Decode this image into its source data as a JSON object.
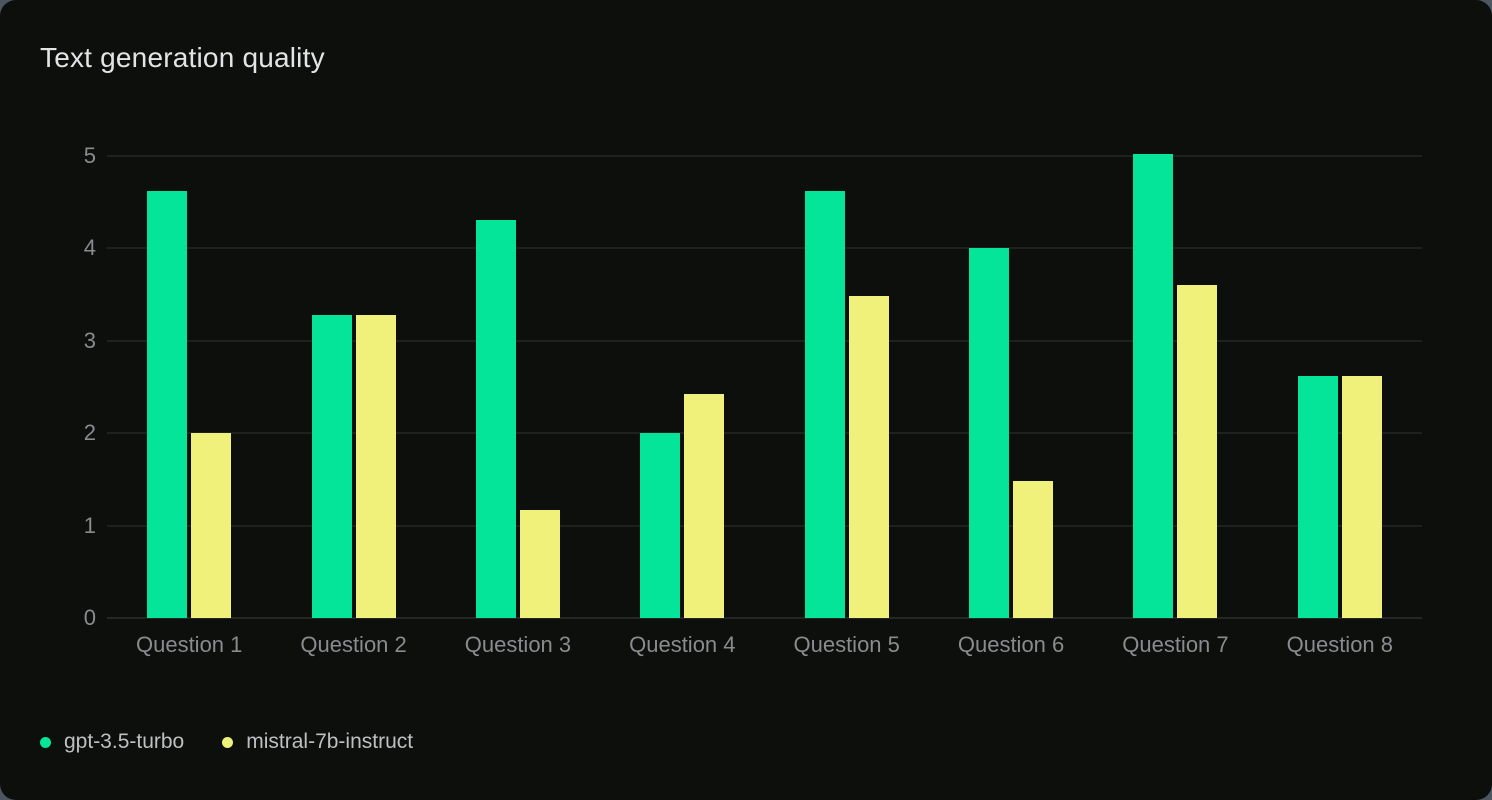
{
  "title": "Text generation quality",
  "colors": {
    "page_background": "#4b5661",
    "card_background": "#0d0f0d",
    "grid": "#1f211f",
    "axis_text": "#8a8a8f",
    "title_text": "#e4e4e6",
    "legend_text": "#bfbfc3",
    "series_green": "#04e59a",
    "series_yellow": "#eff17a"
  },
  "chart_data": {
    "type": "bar",
    "title": "Text generation quality",
    "categories": [
      "Question 1",
      "Question 2",
      "Question 3",
      "Question 4",
      "Question 5",
      "Question 6",
      "Question 7",
      "Question 8"
    ],
    "series": [
      {
        "name": "gpt-3.5-turbo",
        "color": "#04e59a",
        "values": [
          4.62,
          3.28,
          4.31,
          2.0,
          4.62,
          4.0,
          5.02,
          2.62
        ]
      },
      {
        "name": "mistral-7b-instruct",
        "color": "#eff17a",
        "values": [
          2.0,
          3.28,
          1.17,
          2.43,
          3.49,
          1.48,
          3.6,
          2.62
        ]
      }
    ],
    "xlabel": "",
    "ylabel": "",
    "ylim": [
      0,
      5
    ],
    "yticks": [
      0,
      1,
      2,
      3,
      4,
      5
    ],
    "grid": true,
    "legend_position": "bottom-left"
  }
}
